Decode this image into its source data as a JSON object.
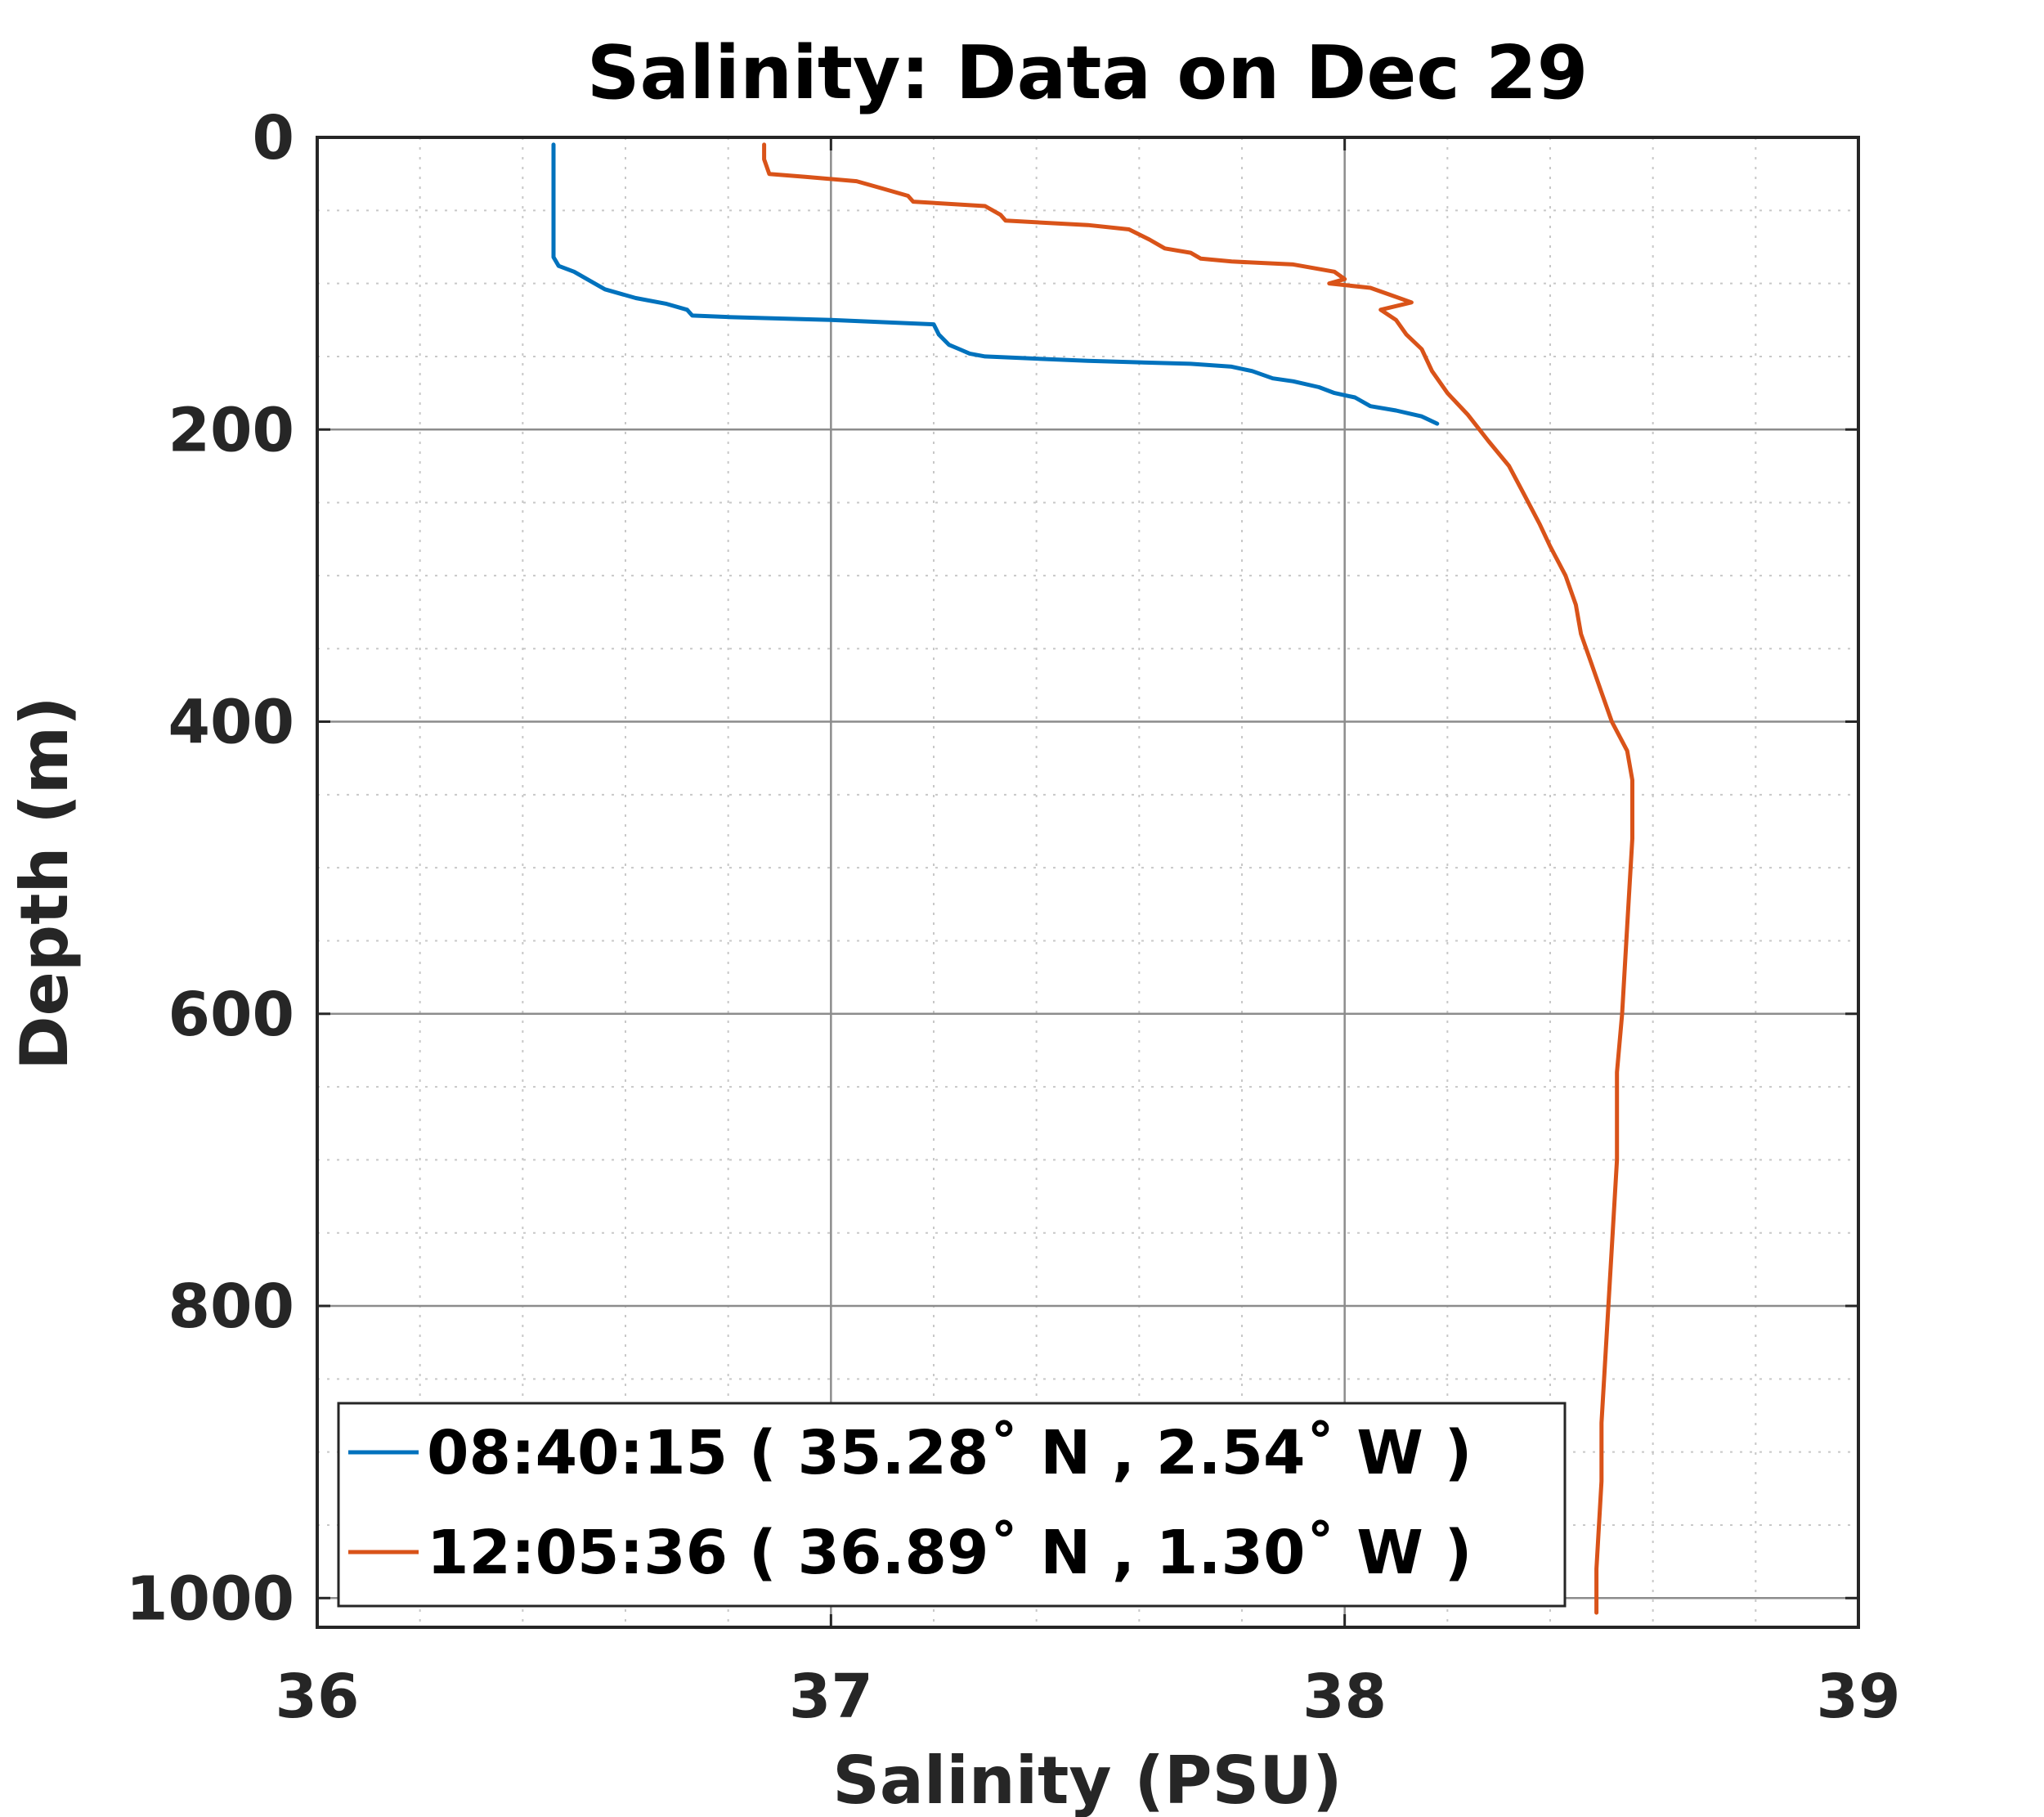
{
  "chart_data": {
    "type": "line",
    "title": "Salinity: Data on Dec 29",
    "xlabel": "Salinity (PSU)",
    "ylabel": "Depth (m)",
    "xlim": [
      36,
      39
    ],
    "ylim": [
      0,
      1020
    ],
    "y_reversed": true,
    "xticks": [
      "36",
      "37",
      "38",
      "39"
    ],
    "yticks": [
      "0",
      "200",
      "400",
      "600",
      "800",
      "1000"
    ],
    "grid": {
      "major": true,
      "minor": true
    },
    "legend_position": "bottom-left",
    "series": [
      {
        "name": "08:40:15 ( 35.28˚ N , 2.54˚ W )",
        "color": "#0072BD",
        "x": [
          36.46,
          36.46,
          36.46,
          36.46,
          36.46,
          36.47,
          36.5,
          36.53,
          36.56,
          36.62,
          36.68,
          36.72,
          36.73,
          36.8,
          37.0,
          37.2,
          37.21,
          37.23,
          37.25,
          37.27,
          37.3,
          37.5,
          37.7,
          37.78,
          37.82,
          37.86,
          37.9,
          37.95,
          37.98,
          38.02,
          38.05,
          38.1,
          38.15,
          38.18
        ],
        "y": [
          5,
          30,
          60,
          75,
          82,
          88,
          92,
          98,
          104,
          110,
          114,
          118,
          122,
          123,
          125,
          128,
          135,
          142,
          145,
          148,
          150,
          153,
          155,
          157,
          160,
          165,
          167,
          171,
          175,
          178,
          184,
          187,
          191,
          196
        ]
      },
      {
        "name": "12:05:36 ( 36.89˚ N , 1.30˚ W )",
        "color": "#D95319",
        "x": [
          36.87,
          36.87,
          36.88,
          36.95,
          37.05,
          37.1,
          37.15,
          37.16,
          37.3,
          37.33,
          37.34,
          37.5,
          37.58,
          37.62,
          37.65,
          37.7,
          37.72,
          37.78,
          37.9,
          37.98,
          38.0,
          37.97,
          38.05,
          38.09,
          38.13,
          38.07,
          38.1,
          38.12,
          38.15,
          38.17,
          38.2,
          38.24,
          38.28,
          38.32,
          38.35,
          38.38,
          38.4,
          38.43,
          38.45,
          38.46,
          38.48,
          38.5,
          38.52,
          38.55,
          38.56,
          38.56,
          38.55,
          38.54,
          38.53,
          38.53,
          38.52,
          38.51,
          38.5,
          38.5,
          38.49,
          38.49
        ],
        "y": [
          5,
          15,
          25,
          27,
          30,
          35,
          40,
          44,
          47,
          53,
          57,
          60,
          63,
          70,
          76,
          79,
          83,
          85,
          87,
          92,
          97,
          100,
          103,
          108,
          113,
          118,
          125,
          135,
          145,
          160,
          175,
          190,
          208,
          225,
          245,
          265,
          280,
          300,
          320,
          340,
          360,
          380,
          400,
          420,
          440,
          480,
          540,
          600,
          640,
          700,
          760,
          820,
          880,
          920,
          980,
          1010
        ]
      }
    ]
  }
}
